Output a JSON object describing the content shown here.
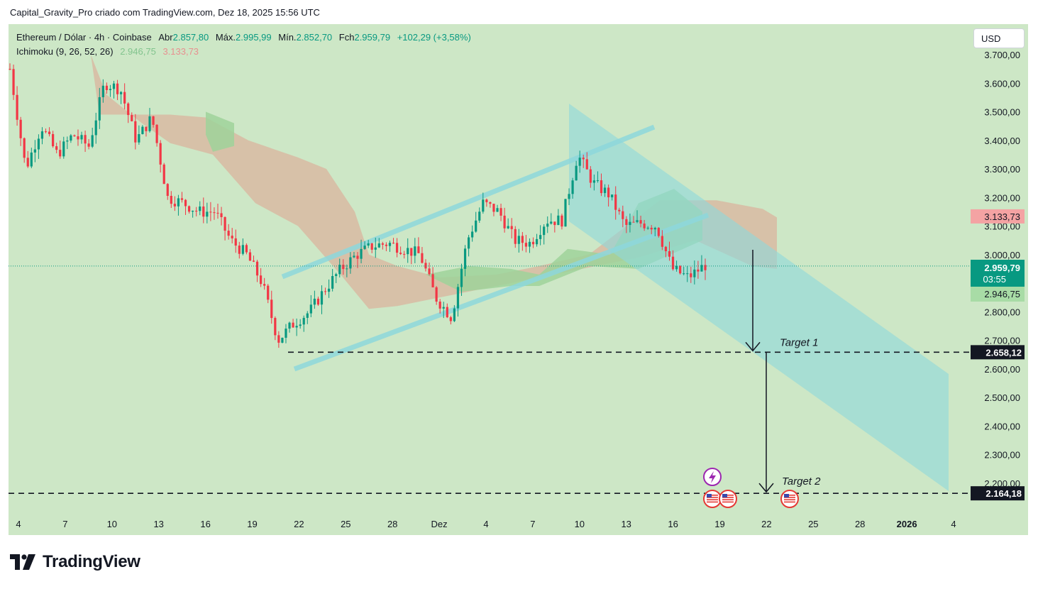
{
  "caption": "Capital_Gravity_Pro criado com TradingView.com, Dez 18, 2025 15:56 UTC",
  "legend": {
    "symbol": "Ethereum / Dólar · 4h · Coinbase",
    "open_label": "Abr",
    "open": "2.857,80",
    "high_label": "Máx.",
    "high": "2.995,99",
    "low_label": "Mín.",
    "low": "2.852,70",
    "close_label": "Fch",
    "close": "2.959,79",
    "change": "+102,29 (+3,58%)",
    "ichimoku_label": "Ichimoku (9, 26, 52, 26)",
    "ichimoku_a": "2.946,75",
    "ichimoku_b": "3.133,73"
  },
  "currency_button": "USD",
  "brand": "TradingView",
  "colors": {
    "background": "#cde7c6",
    "up": "#089981",
    "down": "#f23645",
    "channel": "#8ed8dc",
    "cloud_bear": "#d9b49d",
    "cloud_bull": "#9fd29a"
  },
  "chart_data": {
    "type": "candlestick",
    "symbol": "ETH/USD",
    "timeframe": "4h",
    "ylim": [
      2130,
      3740
    ],
    "x_axis": [
      "4",
      "7",
      "10",
      "13",
      "16",
      "19",
      "22",
      "25",
      "28",
      "Dez",
      "4",
      "7",
      "10",
      "13",
      "16",
      "19",
      "22",
      "25",
      "28",
      "2026",
      "4"
    ],
    "y_ticks": [
      "2.200,00",
      "2.300,00",
      "2.400,00",
      "2.500,00",
      "2.600,00",
      "2.700,00",
      "2.800,00",
      "2.900,00",
      "3.000,00",
      "3.100,00",
      "3.200,00",
      "3.300,00",
      "3.400,00",
      "3.500,00",
      "3.600,00",
      "3.700,00"
    ],
    "y_tick_values": [
      2200,
      2300,
      2400,
      2500,
      2600,
      2700,
      2800,
      2900,
      3000,
      3100,
      3200,
      3300,
      3400,
      3500,
      3600,
      3700
    ],
    "price_path": [
      [
        "Nov 4",
        3650
      ],
      [
        "Nov 5",
        3300
      ],
      [
        "Nov 6",
        3450
      ],
      [
        "Nov 7",
        3350
      ],
      [
        "Nov 8",
        3420
      ],
      [
        "Nov 9",
        3380
      ],
      [
        "Nov 10",
        3600
      ],
      [
        "Nov 11",
        3580
      ],
      [
        "Nov 12",
        3400
      ],
      [
        "Nov 13",
        3480
      ],
      [
        "Nov 14",
        3200
      ],
      [
        "Nov 15",
        3180
      ],
      [
        "Nov 16",
        3150
      ],
      [
        "Nov 17",
        3150
      ],
      [
        "Nov 18",
        3050
      ],
      [
        "Nov 19",
        3000
      ],
      [
        "Nov 20",
        2900
      ],
      [
        "Nov 21",
        2700
      ],
      [
        "Nov 22",
        2760
      ],
      [
        "Nov 23",
        2800
      ],
      [
        "Nov 24",
        2880
      ],
      [
        "Nov 25",
        2950
      ],
      [
        "Nov 26",
        3000
      ],
      [
        "Nov 27",
        3030
      ],
      [
        "Nov 28",
        3040
      ],
      [
        "Nov 29",
        3020
      ],
      [
        "Nov 30",
        3000
      ],
      [
        "Dez 1",
        2850
      ],
      [
        "Dez 2",
        2780
      ],
      [
        "Dez 3",
        3050
      ],
      [
        "Dez 4",
        3180
      ],
      [
        "Dez 5",
        3150
      ],
      [
        "Dez 6",
        3050
      ],
      [
        "Dez 7",
        3040
      ],
      [
        "Dez 8",
        3120
      ],
      [
        "Dez 9",
        3120
      ],
      [
        "Dez 10",
        3350
      ],
      [
        "Dez 11",
        3250
      ],
      [
        "Dez 12",
        3210
      ],
      [
        "Dez 13",
        3100
      ],
      [
        "Dez 14",
        3110
      ],
      [
        "Dez 15",
        3100
      ],
      [
        "Dez 16",
        2950
      ],
      [
        "Dez 17",
        2920
      ],
      [
        "Dez 18",
        2959.79
      ]
    ],
    "last_price": "2.959,79",
    "countdown": "03:55",
    "ichimoku_span_a": "2.946,75",
    "ichimoku_span_b": "3.133,73",
    "targets": [
      {
        "label": "Target 1",
        "price": 2658.12,
        "price_label": "2.658,12"
      },
      {
        "label": "Target 2",
        "price": 2164.18,
        "price_label": "2.164,18"
      }
    ]
  }
}
